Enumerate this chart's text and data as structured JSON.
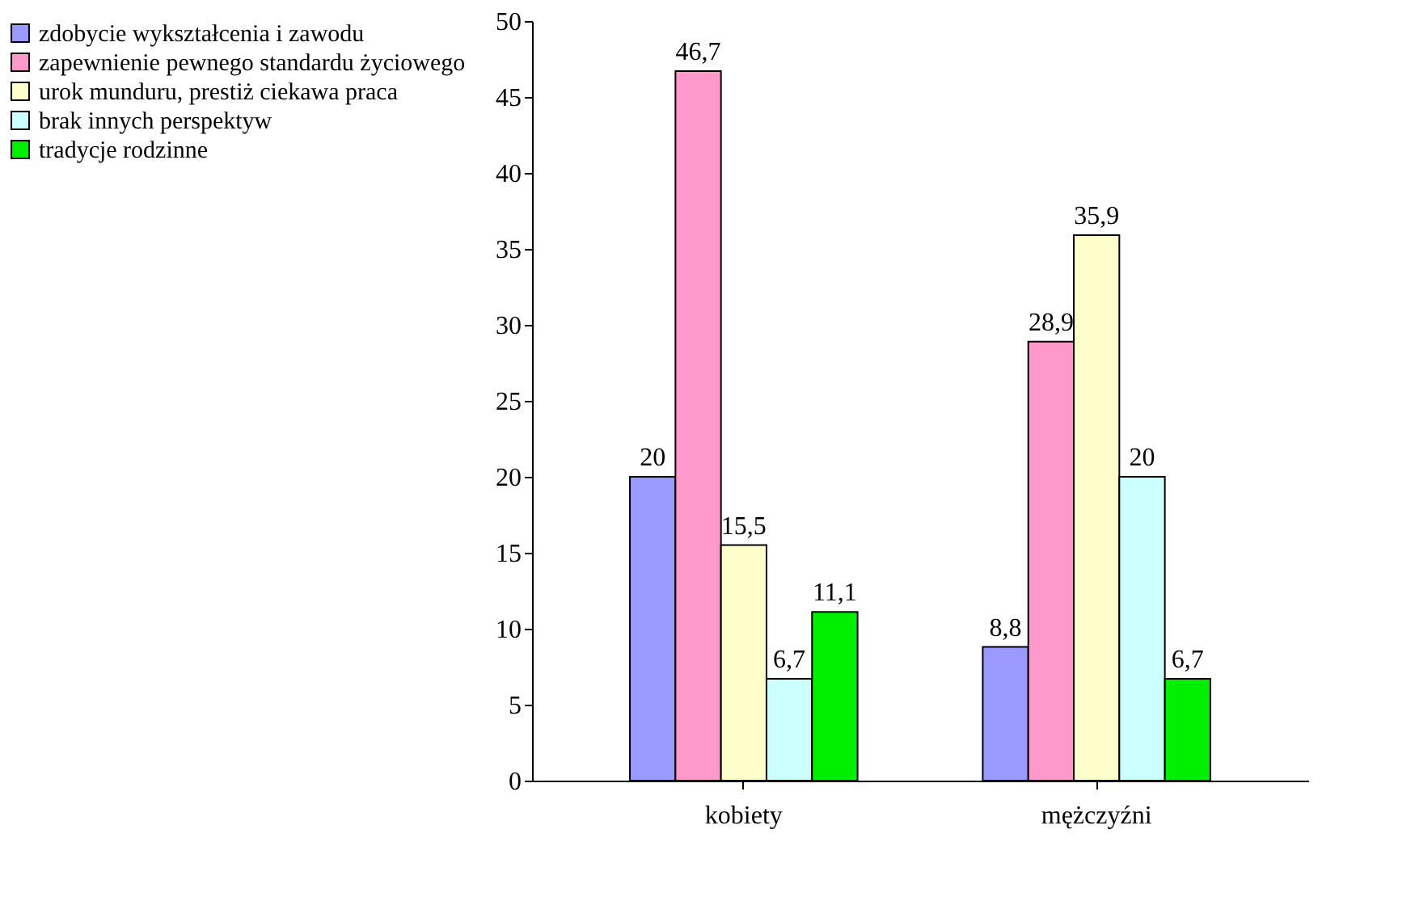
{
  "chart_data": {
    "type": "bar",
    "categories": [
      "kobiety",
      "mężczyźni"
    ],
    "series": [
      {
        "name": "zdobycie wykształcenia i zawodu",
        "color": "#9999ff",
        "values": [
          20,
          8.8
        ],
        "value_labels": [
          "20",
          "8,8"
        ]
      },
      {
        "name": "zapewnienie pewnego standardu życiowego",
        "color": "#ff99cc",
        "values": [
          46.7,
          28.9
        ],
        "value_labels": [
          "46,7",
          "28,9"
        ]
      },
      {
        "name": "urok munduru, prestiż ciekawa praca",
        "color": "#ffffcc",
        "values": [
          15.5,
          35.9
        ],
        "value_labels": [
          "15,5",
          "35,9"
        ]
      },
      {
        "name": "brak innych perspektyw",
        "color": "#ccffff",
        "values": [
          6.7,
          20
        ],
        "value_labels": [
          "6,7",
          "20"
        ]
      },
      {
        "name": "tradycje rodzinne",
        "color": "#00ee00",
        "values": [
          11.1,
          6.7
        ],
        "value_labels": [
          "11,1",
          "6,7"
        ]
      }
    ],
    "ylim": [
      0,
      50
    ],
    "yticks": [
      0,
      5,
      10,
      15,
      20,
      25,
      30,
      35,
      40,
      45,
      50
    ],
    "grid": false,
    "legend": "left"
  }
}
